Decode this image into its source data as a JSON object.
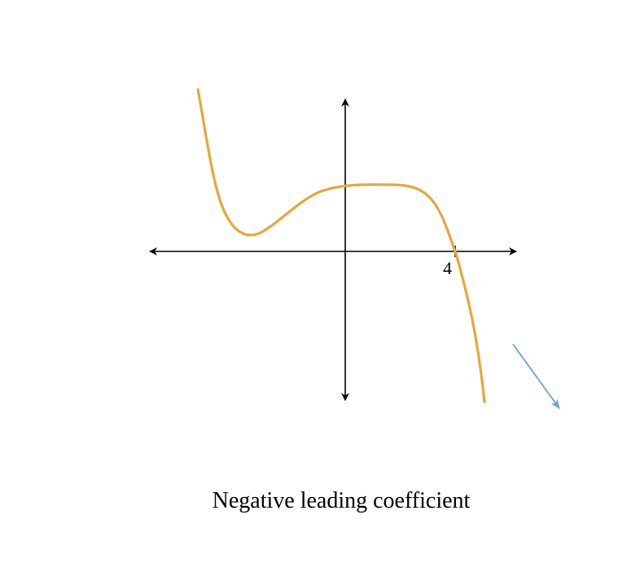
{
  "caption": "Negative leading coefficient",
  "axes": {
    "x_tick_label": "4"
  },
  "colors": {
    "curve": "#E6A73A",
    "axis": "#000000",
    "end_behavior_arrow": "#6FA0D8"
  },
  "curve": {
    "description_shape": "polynomial-curve"
  }
}
